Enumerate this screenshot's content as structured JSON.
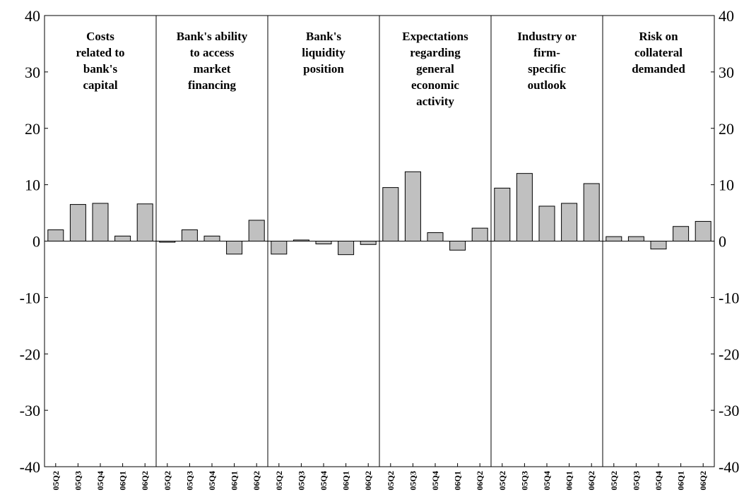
{
  "chart_data": {
    "type": "bar",
    "title": "",
    "xlabel": "",
    "ylabel": "",
    "ylim": [
      -40,
      40
    ],
    "yticks": [
      -40,
      -30,
      -20,
      -10,
      0,
      10,
      20,
      30,
      40
    ],
    "ytick_labels": [
      "-40",
      "-30",
      "-20",
      "-10",
      "0",
      "10",
      "20",
      "30",
      "40"
    ],
    "grid": false,
    "colors": {
      "bar_fill": "#c0c0c0",
      "bar_stroke": "#000000",
      "axis": "#000000"
    },
    "categories": [
      "05Q2",
      "05Q3",
      "05Q4",
      "06Q1",
      "06Q2"
    ],
    "panels": [
      {
        "title_lines": [
          "Costs",
          "related to",
          "bank's",
          "capital"
        ],
        "values": [
          2.0,
          6.5,
          6.7,
          0.9,
          6.6
        ]
      },
      {
        "title_lines": [
          "Bank's ability",
          "to access",
          "market",
          "financing"
        ],
        "values": [
          -0.2,
          2.0,
          0.9,
          -2.3,
          3.7
        ]
      },
      {
        "title_lines": [
          "Bank's",
          "liquidity",
          "position"
        ],
        "values": [
          -2.3,
          0.2,
          -0.5,
          -2.4,
          -0.6
        ]
      },
      {
        "title_lines": [
          "Expectations",
          "regarding",
          "general",
          "economic",
          "activity"
        ],
        "values": [
          9.5,
          12.3,
          1.5,
          -1.6,
          2.3
        ]
      },
      {
        "title_lines": [
          "Industry or",
          "firm-",
          "specific",
          "outlook"
        ],
        "values": [
          9.4,
          12.0,
          6.2,
          6.7,
          10.2
        ]
      },
      {
        "title_lines": [
          "Risk on",
          "collateral",
          "demanded"
        ],
        "values": [
          0.8,
          0.8,
          -1.4,
          2.6,
          3.5
        ]
      }
    ]
  }
}
